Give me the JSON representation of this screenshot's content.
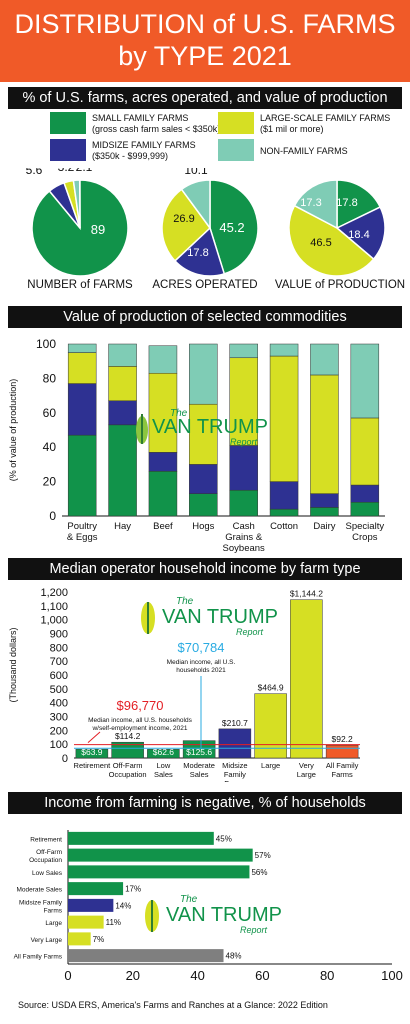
{
  "header": {
    "line1": "DISTRIBUTION of U.S. FARMS",
    "line2": "by TYPE 2021"
  },
  "colors": {
    "small": "#11934a",
    "large": "#d6df23",
    "midsize": "#2e3192",
    "nonfamily": "#7fccb5",
    "orange": "#f05a28",
    "gray": "#7f7f7f"
  },
  "section1": {
    "title": "% of U.S. farms, acres operated, and value of production",
    "legend": [
      {
        "key": "small",
        "line1": "SMALL FAMILY FARMS",
        "line2": "(gross cash farm sales < $350k)"
      },
      {
        "key": "large",
        "line1": "LARGE-SCALE FAMILY FARMS",
        "line2": "($1 mil or more)"
      },
      {
        "key": "midsize",
        "line1": "MIDSIZE FAMILY FARMS",
        "line2": "($350k - $999,999)"
      },
      {
        "key": "nonfamily",
        "line1": "NON-FAMILY FARMS",
        "line2": ""
      }
    ],
    "pie_labels": [
      "NUMBER of FARMS",
      "ACRES OPERATED",
      "VALUE of PRODUCTION"
    ]
  },
  "section2": {
    "title": "Value of production of selected commodities"
  },
  "section3": {
    "title": "Median operator household income by farm type"
  },
  "section4": {
    "title": "Income from farming is negative, % of households"
  },
  "logo": {
    "the": "The",
    "name": "VAN TRUMP",
    "report": "Report"
  },
  "source": "Source: USDA ERS, America's Farms and Ranches at a Glance: 2022 Edition",
  "chart_data": [
    {
      "type": "pie",
      "label": "NUMBER of FARMS",
      "slices": [
        {
          "key": "small",
          "value": 89
        },
        {
          "key": "midsize",
          "value": 5.6
        },
        {
          "key": "large",
          "value": 3.2
        },
        {
          "key": "nonfamily",
          "value": 2.1
        }
      ]
    },
    {
      "type": "pie",
      "label": "ACRES OPERATED",
      "slices": [
        {
          "key": "small",
          "value": 45.2
        },
        {
          "key": "midsize",
          "value": 17.8
        },
        {
          "key": "large",
          "value": 26.9
        },
        {
          "key": "nonfamily",
          "value": 10.1
        }
      ]
    },
    {
      "type": "pie",
      "label": "VALUE of PRODUCTION",
      "slices": [
        {
          "key": "small",
          "value": 17.8
        },
        {
          "key": "midsize",
          "value": 18.4
        },
        {
          "key": "large",
          "value": 46.5
        },
        {
          "key": "nonfamily",
          "value": 17.3
        }
      ]
    },
    {
      "type": "bar",
      "stacked": true,
      "categories": [
        "Poultry & Eggs",
        "Hay",
        "Beef",
        "Hogs",
        "Cash Grains & Soybeans",
        "Cotton",
        "Dairy",
        "Specialty Crops"
      ],
      "ylabel": "(% of value of production)",
      "ylim": [
        0,
        100
      ],
      "yticks": [
        0,
        20,
        40,
        60,
        80,
        100
      ],
      "series": [
        {
          "key": "small",
          "values": [
            47,
            53,
            26,
            13,
            15,
            4,
            5,
            8
          ]
        },
        {
          "key": "midsize",
          "values": [
            30,
            14,
            11,
            17,
            26,
            16,
            8,
            10
          ]
        },
        {
          "key": "large",
          "values": [
            18,
            20,
            46,
            35,
            51,
            73,
            69,
            39
          ]
        },
        {
          "key": "nonfamily",
          "values": [
            5,
            13,
            16,
            35,
            8,
            7,
            18,
            43
          ]
        }
      ]
    },
    {
      "type": "bar",
      "categories": [
        "Retirement",
        "Off-Farm Occupation",
        "Low Sales",
        "Moderate Sales",
        "Midsize Family Farms",
        "Large",
        "Very Large",
        "All Family Farms"
      ],
      "values": [
        63.9,
        114.2,
        62.6,
        125.6,
        210.7,
        464.9,
        1144.2,
        92.2
      ],
      "labels": [
        "$63.9",
        "$114.2",
        "$62.6",
        "$125.6",
        "$210.7",
        "$464.9",
        "$1,144.2",
        "$92.2"
      ],
      "ylabel": "(Thousand dollars)",
      "ylim": [
        0,
        1200
      ],
      "yticks": [
        0,
        100,
        200,
        300,
        400,
        500,
        600,
        700,
        800,
        900,
        1000,
        1100,
        1200
      ],
      "annotations": [
        {
          "value": "$96,770",
          "text1": "Median income, all U.S. households",
          "text2": "w/self-employment income, 2021"
        },
        {
          "value": "$70,784",
          "text1": "Median income, all U.S.",
          "text2": "households 2021"
        }
      ]
    },
    {
      "type": "bar",
      "orientation": "horizontal",
      "categories": [
        "Retirement",
        "Off-Farm Occupation",
        "Low Sales",
        "Moderate Sales",
        "Midsize Family Farms",
        "Large",
        "Very Large",
        "All Family Farms"
      ],
      "values": [
        45,
        57,
        56,
        17,
        14,
        11,
        7,
        48
      ],
      "labels": [
        "45%",
        "57%",
        "56%",
        "17%",
        "14%",
        "11%",
        "7%",
        "48%"
      ],
      "xlim": [
        0,
        100
      ],
      "xticks": [
        0,
        20,
        40,
        60,
        80,
        100
      ]
    }
  ]
}
